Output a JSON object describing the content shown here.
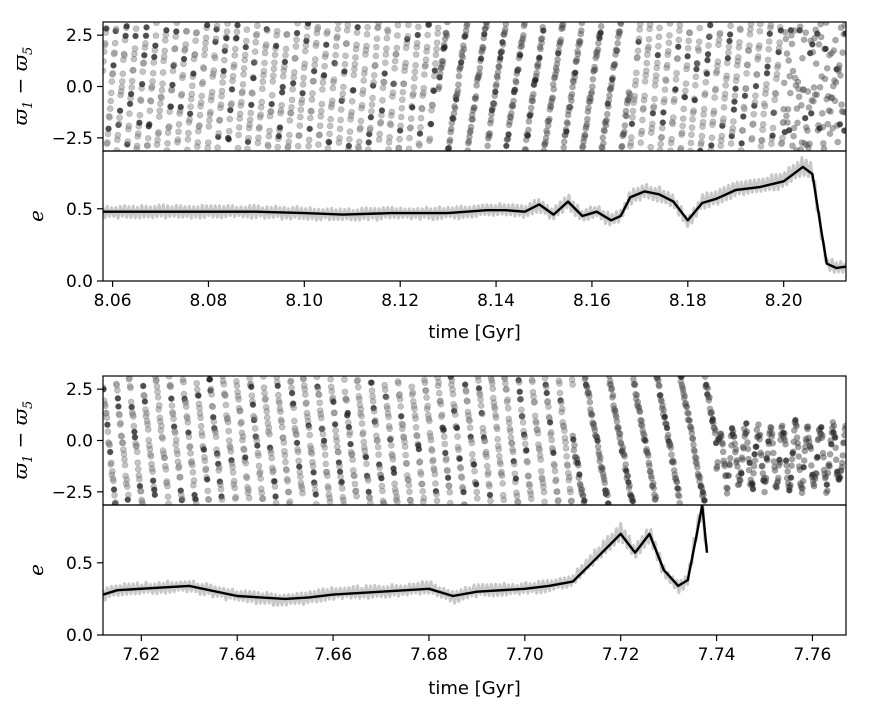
{
  "chart_data": [
    {
      "type": "scatter+line",
      "xlabel": "time [Gyr]",
      "xlim": [
        8.058,
        8.213
      ],
      "x_ticks": [
        "8.06",
        "8.08",
        "8.10",
        "8.12",
        "8.14",
        "8.16",
        "8.18",
        "8.20"
      ],
      "top_panel": {
        "type": "scatter",
        "ylabel": "ϖ₁ − ϖ₅",
        "ylim": [
          -3.14,
          3.14
        ],
        "y_ticks": [
          "2.5",
          "0.0",
          "−2.5"
        ],
        "series": [
          {
            "regime": "circulating",
            "x_range": [
              8.058,
              8.128
            ],
            "period_gyr": 0.0021,
            "direction": "increasing",
            "color": "#7a7a7a"
          },
          {
            "regime": "fast circulating",
            "x_range": [
              8.128,
              8.168
            ],
            "period_gyr": 0.004,
            "direction": "increasing",
            "color": "#444444"
          },
          {
            "regime": "circulating",
            "x_range": [
              8.168,
              8.2
            ],
            "period_gyr": 0.0021,
            "direction": "increasing",
            "color": "#7a7a7a"
          },
          {
            "regime": "chaotic",
            "x_range": [
              8.2,
              8.213
            ],
            "color": "#444444"
          }
        ]
      },
      "bottom_panel": {
        "type": "line",
        "ylabel": "e",
        "ylim": [
          0.0,
          0.9
        ],
        "y_ticks": [
          "0.0",
          "0.5"
        ],
        "series": [
          {
            "style": "raw",
            "color": "#c8c8c8",
            "x": [
              8.058,
              8.075,
              8.09,
              8.1,
              8.108,
              8.118,
              8.125,
              8.13,
              8.138,
              8.142,
              8.146,
              8.149,
              8.152,
              8.155,
              8.158,
              8.161,
              8.164,
              8.166,
              8.168,
              8.171,
              8.174,
              8.177,
              8.18,
              8.183,
              8.186,
              8.19,
              8.195,
              8.2,
              8.204,
              8.206,
              8.208,
              8.209,
              8.211,
              8.213
            ],
            "y": [
              0.48,
              0.48,
              0.48,
              0.47,
              0.46,
              0.47,
              0.47,
              0.47,
              0.49,
              0.49,
              0.48,
              0.53,
              0.46,
              0.55,
              0.45,
              0.48,
              0.42,
              0.45,
              0.58,
              0.62,
              0.6,
              0.55,
              0.4,
              0.55,
              0.58,
              0.64,
              0.66,
              0.7,
              0.8,
              0.75,
              0.3,
              0.12,
              0.1,
              0.1
            ]
          },
          {
            "style": "smoothed",
            "color": "#000000",
            "x": [
              8.058,
              8.075,
              8.09,
              8.1,
              8.108,
              8.118,
              8.125,
              8.13,
              8.138,
              8.142,
              8.146,
              8.149,
              8.152,
              8.155,
              8.158,
              8.161,
              8.164,
              8.166,
              8.168,
              8.171,
              8.174,
              8.177,
              8.18,
              8.183,
              8.186,
              8.19,
              8.195,
              8.2,
              8.204,
              8.206,
              8.208,
              8.209,
              8.211,
              8.213
            ],
            "y": [
              0.48,
              0.48,
              0.48,
              0.47,
              0.46,
              0.47,
              0.47,
              0.47,
              0.49,
              0.49,
              0.48,
              0.53,
              0.46,
              0.55,
              0.45,
              0.48,
              0.42,
              0.45,
              0.58,
              0.62,
              0.6,
              0.55,
              0.42,
              0.54,
              0.57,
              0.63,
              0.65,
              0.69,
              0.79,
              0.74,
              0.32,
              0.12,
              0.09,
              0.1
            ]
          }
        ]
      }
    },
    {
      "type": "scatter+line",
      "xlabel": "time [Gyr]",
      "xlim": [
        7.612,
        7.767
      ],
      "x_ticks": [
        "7.62",
        "7.64",
        "7.66",
        "7.68",
        "7.70",
        "7.72",
        "7.74",
        "7.76"
      ],
      "top_panel": {
        "type": "scatter",
        "ylabel": "ϖ₁ − ϖ₅",
        "ylim": [
          -3.14,
          3.14
        ],
        "y_ticks": [
          "2.5",
          "0.0",
          "−2.5"
        ],
        "series": [
          {
            "regime": "circulating",
            "x_range": [
              7.612,
              7.71
            ],
            "period_gyr": 0.0028,
            "direction": "decreasing",
            "color": "#7a7a7a"
          },
          {
            "regime": "transition",
            "x_range": [
              7.71,
              7.74
            ],
            "period_gyr": 0.005,
            "direction": "decreasing",
            "color": "#444444"
          },
          {
            "regime": "librating",
            "x_range": [
              7.74,
              7.767
            ],
            "center": -0.8,
            "amplitude": 1.4,
            "color": "#333333"
          }
        ]
      },
      "bottom_panel": {
        "type": "line",
        "ylabel": "e",
        "ylim": [
          0.0,
          0.9
        ],
        "y_ticks": [
          "0.0",
          "0.5"
        ],
        "series": [
          {
            "style": "raw",
            "color": "#c8c8c8",
            "x": [
              7.612,
              7.615,
              7.625,
              7.63,
              7.64,
              7.65,
              7.655,
              7.66,
              7.67,
              7.68,
              7.685,
              7.69,
              7.7,
              7.705,
              7.71,
              7.714,
              7.72,
              7.723,
              7.726,
              7.729,
              7.732,
              7.734,
              7.736,
              7.737,
              7.738
            ],
            "y": [
              0.28,
              0.31,
              0.33,
              0.34,
              0.27,
              0.24,
              0.26,
              0.29,
              0.3,
              0.33,
              0.26,
              0.31,
              0.32,
              0.34,
              0.38,
              0.52,
              0.72,
              0.57,
              0.7,
              0.44,
              0.33,
              0.38,
              0.74,
              0.9,
              0.56
            ]
          },
          {
            "style": "smoothed",
            "color": "#000000",
            "x": [
              7.612,
              7.615,
              7.625,
              7.63,
              7.64,
              7.65,
              7.655,
              7.66,
              7.67,
              7.68,
              7.685,
              7.69,
              7.7,
              7.705,
              7.71,
              7.714,
              7.72,
              7.723,
              7.726,
              7.729,
              7.732,
              7.734,
              7.736,
              7.737,
              7.738
            ],
            "y": [
              0.28,
              0.31,
              0.33,
              0.34,
              0.27,
              0.25,
              0.26,
              0.28,
              0.3,
              0.32,
              0.27,
              0.3,
              0.32,
              0.34,
              0.37,
              0.5,
              0.7,
              0.57,
              0.7,
              0.45,
              0.34,
              0.38,
              0.72,
              0.9,
              0.57
            ]
          }
        ]
      }
    }
  ]
}
